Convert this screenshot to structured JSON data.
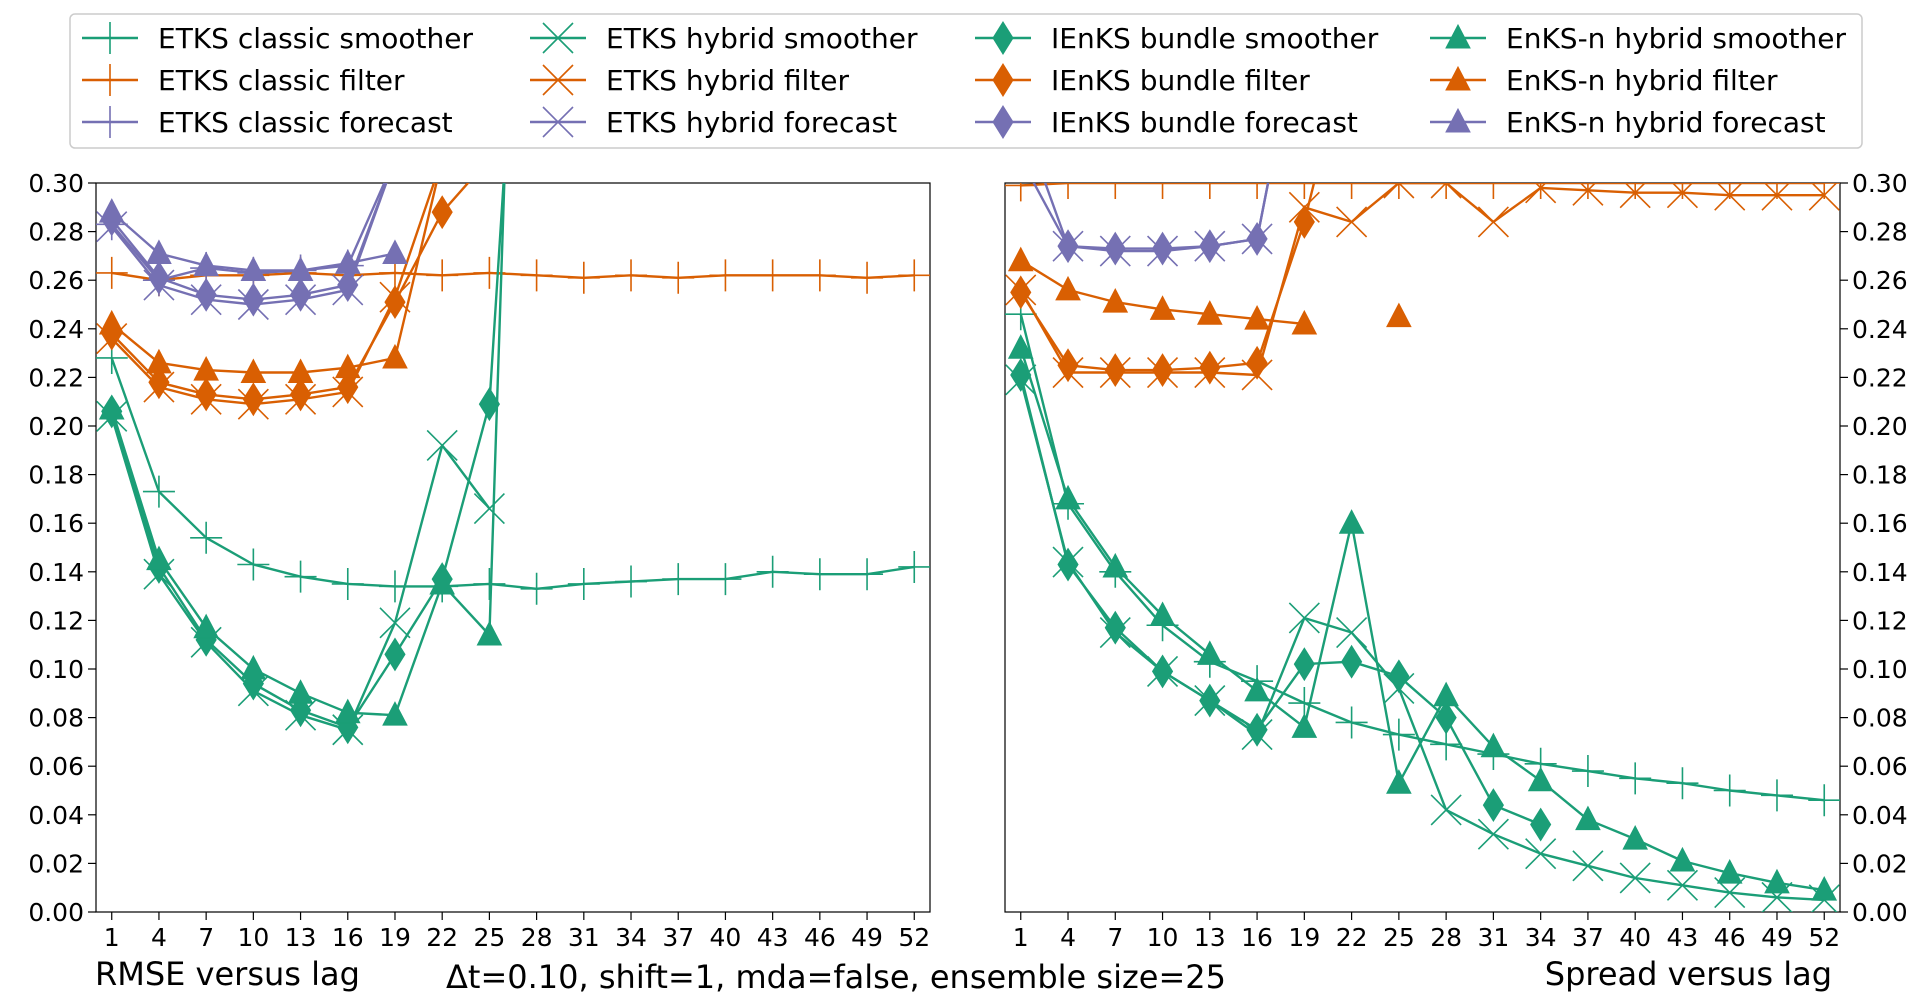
{
  "colors": {
    "smoother": "#1b9e77",
    "filter": "#d95f02",
    "forecast": "#7570b3"
  },
  "caption": {
    "left": "RMSE versus lag",
    "center": "Δt=0.10, shift=1, mda=false, ensemble size=25",
    "right": "Spread versus lag"
  },
  "legend": [
    {
      "label": "ETKS classic smoother",
      "role": "smoother",
      "marker": "plus"
    },
    {
      "label": "ETKS classic filter",
      "role": "filter",
      "marker": "plus"
    },
    {
      "label": "ETKS classic forecast",
      "role": "forecast",
      "marker": "plus"
    },
    {
      "label": "ETKS hybrid smoother",
      "role": "smoother",
      "marker": "x"
    },
    {
      "label": "ETKS hybrid filter",
      "role": "filter",
      "marker": "x"
    },
    {
      "label": "ETKS hybrid forecast",
      "role": "forecast",
      "marker": "x"
    },
    {
      "label": "IEnKS bundle smoother",
      "role": "smoother",
      "marker": "diamond"
    },
    {
      "label": "IEnKS bundle filter",
      "role": "filter",
      "marker": "diamond"
    },
    {
      "label": "IEnKS bundle forecast",
      "role": "forecast",
      "marker": "diamond"
    },
    {
      "label": "EnKS-n hybrid smoother",
      "role": "smoother",
      "marker": "triangle"
    },
    {
      "label": "EnKS-n hybrid filter",
      "role": "filter",
      "marker": "triangle"
    },
    {
      "label": "EnKS-n hybrid forecast",
      "role": "forecast",
      "marker": "triangle"
    }
  ],
  "chart_data": [
    {
      "type": "line",
      "panel": "rmse",
      "xlim": [
        0,
        53
      ],
      "ylim": [
        0.0,
        0.3
      ],
      "x_ticks": [
        1,
        4,
        7,
        10,
        13,
        16,
        19,
        22,
        25,
        28,
        31,
        34,
        37,
        40,
        43,
        46,
        49,
        52
      ],
      "y_ticks": [
        "0.00",
        "0.02",
        "0.04",
        "0.06",
        "0.08",
        "0.10",
        "0.12",
        "0.14",
        "0.16",
        "0.18",
        "0.20",
        "0.22",
        "0.24",
        "0.26",
        "0.28",
        "0.30"
      ],
      "y_axis_side": "left",
      "series": [
        {
          "method": "ETKS classic",
          "role": "smoother",
          "marker": "plus",
          "x": [
            1,
            4,
            7,
            10,
            13,
            16,
            19,
            22,
            25,
            28,
            31,
            34,
            37,
            40,
            43,
            46,
            49,
            52
          ],
          "y": [
            0.228,
            0.173,
            0.154,
            0.143,
            0.138,
            0.135,
            0.134,
            0.134,
            0.135,
            0.133,
            0.135,
            0.136,
            0.137,
            0.137,
            0.14,
            0.139,
            0.139,
            0.142
          ]
        },
        {
          "method": "ETKS classic",
          "role": "filter",
          "marker": "plus",
          "x": [
            1,
            4,
            7,
            10,
            13,
            16,
            19,
            22,
            25,
            28,
            31,
            34,
            37,
            40,
            43,
            46,
            49,
            52
          ],
          "y": [
            0.263,
            0.26,
            0.262,
            0.262,
            0.263,
            0.262,
            0.263,
            0.262,
            0.263,
            0.262,
            0.261,
            0.262,
            0.261,
            0.262,
            0.262,
            0.262,
            0.261,
            0.262
          ]
        },
        {
          "method": "ETKS classic",
          "role": "forecast",
          "marker": "plus",
          "x": [
            1,
            4,
            7,
            10,
            13,
            16,
            19
          ],
          "y": [
            0.283,
            0.26,
            0.265,
            0.263,
            0.264,
            0.266,
            0.31
          ]
        },
        {
          "method": "ETKS hybrid",
          "role": "smoother",
          "marker": "x",
          "x": [
            1,
            4,
            7,
            10,
            13,
            16,
            19,
            22,
            25
          ],
          "y": [
            0.204,
            0.139,
            0.111,
            0.091,
            0.081,
            0.075,
            0.119,
            0.192,
            0.166
          ]
        },
        {
          "method": "ETKS hybrid",
          "role": "filter",
          "marker": "x",
          "x": [
            1,
            4,
            7,
            10,
            13,
            16,
            19,
            22,
            25
          ],
          "y": [
            0.236,
            0.216,
            0.211,
            0.209,
            0.211,
            0.214,
            0.253,
            0.31,
            0.31
          ]
        },
        {
          "method": "ETKS hybrid",
          "role": "forecast",
          "marker": "x",
          "x": [
            1,
            4,
            7,
            10,
            13,
            16,
            19
          ],
          "y": [
            0.282,
            0.258,
            0.252,
            0.25,
            0.252,
            0.256,
            0.31
          ]
        },
        {
          "method": "IEnKS bundle",
          "role": "smoother",
          "marker": "diamond",
          "x": [
            1,
            4,
            7,
            10,
            13,
            16,
            19,
            22,
            25,
            26
          ],
          "y": [
            0.206,
            0.142,
            0.112,
            0.094,
            0.083,
            0.076,
            0.106,
            0.137,
            0.209,
            0.31
          ]
        },
        {
          "method": "IEnKS bundle",
          "role": "filter",
          "marker": "diamond",
          "x": [
            1,
            4,
            7,
            10,
            13,
            16,
            19,
            22,
            25
          ],
          "y": [
            0.238,
            0.218,
            0.213,
            0.211,
            0.213,
            0.216,
            0.251,
            0.288,
            0.31
          ]
        },
        {
          "method": "IEnKS bundle",
          "role": "forecast",
          "marker": "diamond",
          "x": [
            1,
            4,
            7,
            10,
            13,
            16,
            19
          ],
          "y": [
            0.285,
            0.261,
            0.254,
            0.252,
            0.254,
            0.258,
            0.31
          ]
        },
        {
          "method": "EnKS-n hybrid",
          "role": "smoother",
          "marker": "triangle",
          "x": [
            1,
            4,
            7,
            10,
            13,
            16,
            19,
            22,
            25,
            26
          ],
          "y": [
            0.207,
            0.145,
            0.117,
            0.1,
            0.09,
            0.082,
            0.081,
            0.135,
            0.114,
            0.31
          ]
        },
        {
          "method": "EnKS-n hybrid",
          "role": "filter",
          "marker": "triangle",
          "x": [
            1,
            4,
            7,
            10,
            13,
            16,
            19,
            22,
            25
          ],
          "y": [
            0.242,
            0.226,
            0.223,
            0.222,
            0.222,
            0.224,
            0.228,
            0.31,
            0.31
          ]
        },
        {
          "method": "EnKS-n hybrid",
          "role": "forecast",
          "marker": "triangle",
          "x": [
            1,
            4,
            7,
            10,
            13,
            16,
            19
          ],
          "y": [
            0.288,
            0.271,
            0.266,
            0.264,
            0.264,
            0.267,
            0.271
          ]
        }
      ]
    },
    {
      "type": "line",
      "panel": "spread",
      "xlim": [
        0,
        53
      ],
      "ylim": [
        0.0,
        0.3
      ],
      "x_ticks": [
        1,
        4,
        7,
        10,
        13,
        16,
        19,
        22,
        25,
        28,
        31,
        34,
        37,
        40,
        43,
        46,
        49,
        52
      ],
      "y_ticks": [
        "0.00",
        "0.02",
        "0.04",
        "0.06",
        "0.08",
        "0.10",
        "0.12",
        "0.14",
        "0.16",
        "0.18",
        "0.20",
        "0.22",
        "0.24",
        "0.26",
        "0.28",
        "0.30"
      ],
      "y_axis_side": "right",
      "series": [
        {
          "method": "ETKS classic",
          "role": "smoother",
          "marker": "plus",
          "x": [
            1,
            4,
            7,
            10,
            13,
            16,
            19,
            22,
            25,
            28,
            31,
            34,
            37,
            40,
            43,
            46,
            49,
            52
          ],
          "y": [
            0.246,
            0.168,
            0.14,
            0.118,
            0.103,
            0.095,
            0.086,
            0.078,
            0.073,
            0.069,
            0.065,
            0.061,
            0.058,
            0.055,
            0.053,
            0.05,
            0.048,
            0.046
          ]
        },
        {
          "method": "ETKS classic",
          "role": "filter",
          "marker": "plus",
          "x": [
            1,
            4,
            7,
            10,
            13,
            16,
            19,
            22,
            25,
            28,
            31,
            34,
            37,
            40,
            43,
            46,
            49,
            52
          ],
          "y": [
            0.299,
            0.3,
            0.3,
            0.3,
            0.3,
            0.3,
            0.3,
            0.3,
            0.3,
            0.3,
            0.3,
            0.3,
            0.3,
            0.3,
            0.3,
            0.3,
            0.3,
            0.3
          ]
        },
        {
          "method": "ETKS classic",
          "role": "forecast",
          "marker": "plus",
          "x": [
            1,
            4
          ],
          "y": [
            0.31,
            0.31
          ]
        },
        {
          "method": "ETKS hybrid",
          "role": "smoother",
          "marker": "x",
          "x": [
            1,
            4,
            7,
            10,
            13,
            16,
            19,
            22,
            25,
            28,
            31,
            34,
            37,
            40,
            43,
            46,
            49,
            52
          ],
          "y": [
            0.219,
            0.144,
            0.115,
            0.099,
            0.087,
            0.073,
            0.121,
            0.115,
            0.092,
            0.042,
            0.032,
            0.024,
            0.019,
            0.014,
            0.011,
            0.008,
            0.006,
            0.005
          ]
        },
        {
          "method": "ETKS hybrid",
          "role": "filter",
          "marker": "x",
          "x": [
            1,
            4,
            7,
            10,
            13,
            16,
            19,
            22,
            25,
            28,
            31,
            34,
            37,
            40,
            43,
            46,
            49,
            52
          ],
          "y": [
            0.256,
            0.222,
            0.222,
            0.222,
            0.222,
            0.221,
            0.29,
            0.284,
            0.3,
            0.3,
            0.284,
            0.298,
            0.297,
            0.296,
            0.296,
            0.295,
            0.295,
            0.295
          ]
        },
        {
          "method": "ETKS hybrid",
          "role": "forecast",
          "marker": "x",
          "x": [
            1,
            4,
            7,
            10,
            13,
            16,
            17
          ],
          "y": [
            0.31,
            0.274,
            0.272,
            0.272,
            0.274,
            0.277,
            0.31
          ]
        },
        {
          "method": "IEnKS bundle",
          "role": "smoother",
          "marker": "diamond",
          "x": [
            1,
            4,
            7,
            10,
            13,
            16,
            19,
            22,
            25,
            28,
            31,
            34
          ],
          "y": [
            0.221,
            0.143,
            0.117,
            0.099,
            0.087,
            0.075,
            0.102,
            0.103,
            0.097,
            0.08,
            0.044,
            0.036
          ]
        },
        {
          "method": "IEnKS bundle",
          "role": "filter",
          "marker": "diamond",
          "x": [
            1,
            4,
            7,
            10,
            13,
            16,
            19,
            20
          ],
          "y": [
            0.255,
            0.225,
            0.223,
            0.223,
            0.224,
            0.226,
            0.284,
            0.31
          ]
        },
        {
          "method": "IEnKS bundle",
          "role": "forecast",
          "marker": "diamond",
          "x": [
            2,
            4,
            7,
            10,
            13,
            16,
            17
          ],
          "y": [
            0.31,
            0.274,
            0.273,
            0.273,
            0.274,
            0.277,
            0.31
          ]
        },
        {
          "method": "EnKS-n hybrid",
          "role": "smoother",
          "marker": "triangle",
          "x": [
            1,
            4,
            7,
            10,
            13,
            16,
            19,
            22,
            25,
            28,
            31,
            34,
            37,
            40,
            43,
            46,
            49,
            52
          ],
          "y": [
            0.232,
            0.17,
            0.142,
            0.122,
            0.106,
            0.091,
            0.076,
            0.16,
            0.053,
            0.089,
            0.068,
            0.054,
            0.038,
            0.03,
            0.021,
            0.016,
            0.012,
            0.009
          ]
        },
        {
          "method": "EnKS-n hybrid",
          "role": "filter",
          "marker": "triangle",
          "x": [
            1,
            4,
            7,
            10,
            13,
            16,
            19
          ],
          "y": [
            0.268,
            0.256,
            0.251,
            0.248,
            0.246,
            0.244,
            0.242
          ]
        },
        {
          "method": "EnKS-n hybrid",
          "role": "filter",
          "marker": "triangle",
          "x": [
            25
          ],
          "y": [
            0.245
          ]
        },
        {
          "method": "EnKS-n hybrid",
          "role": "forecast",
          "marker": "triangle",
          "x": [],
          "y": []
        }
      ]
    }
  ]
}
